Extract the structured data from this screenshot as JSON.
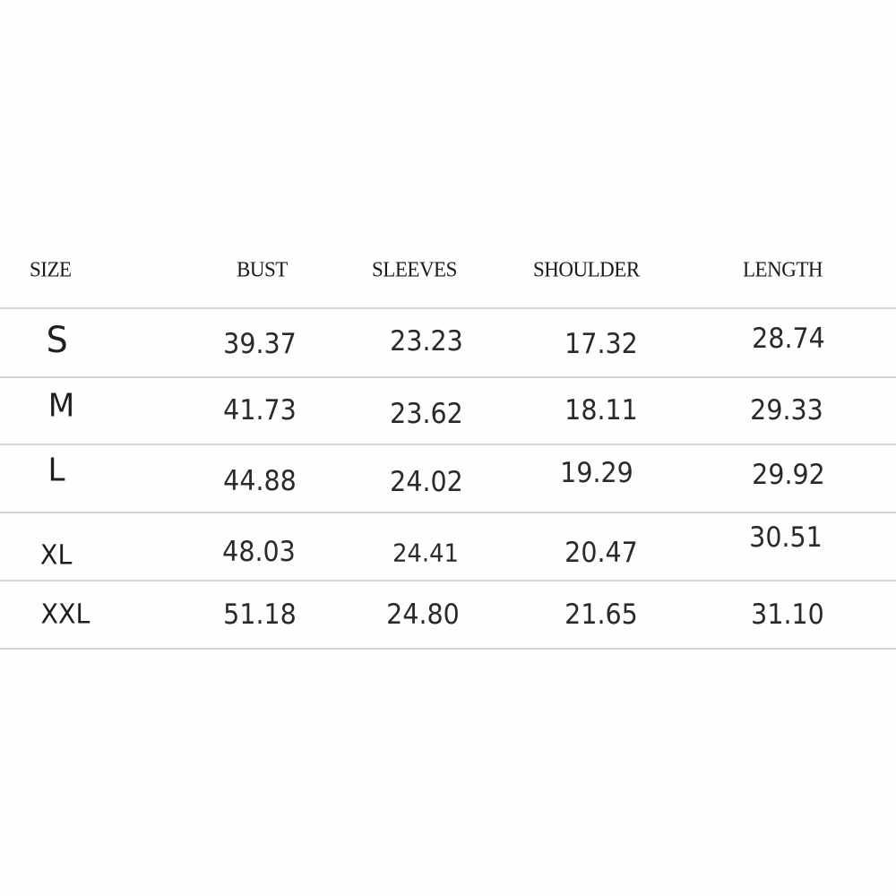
{
  "headers": [
    "SIZE",
    "BUST",
    "SLEEVES",
    "SHOULDER",
    "LENGTH"
  ],
  "rows": [
    {
      "size": "S",
      "bust": "39.37",
      "sleeves": "23.23",
      "shoulder": "17.32",
      "length": "28.74"
    },
    {
      "size": "M",
      "bust": "41.73",
      "sleeves": "23.62",
      "shoulder": "18.11",
      "length": "29.33"
    },
    {
      "size": "L",
      "bust": "44.88",
      "sleeves": "24.02",
      "shoulder": "19.29",
      "length": "29.92"
    },
    {
      "size": "XL",
      "bust": "48.03",
      "sleeves": "24.41",
      "shoulder": "20.47",
      "length": "30.51"
    },
    {
      "size": "XXL",
      "bust": "51.18",
      "sleeves": "24.80",
      "shoulder": "21.65",
      "length": "31.10"
    }
  ]
}
